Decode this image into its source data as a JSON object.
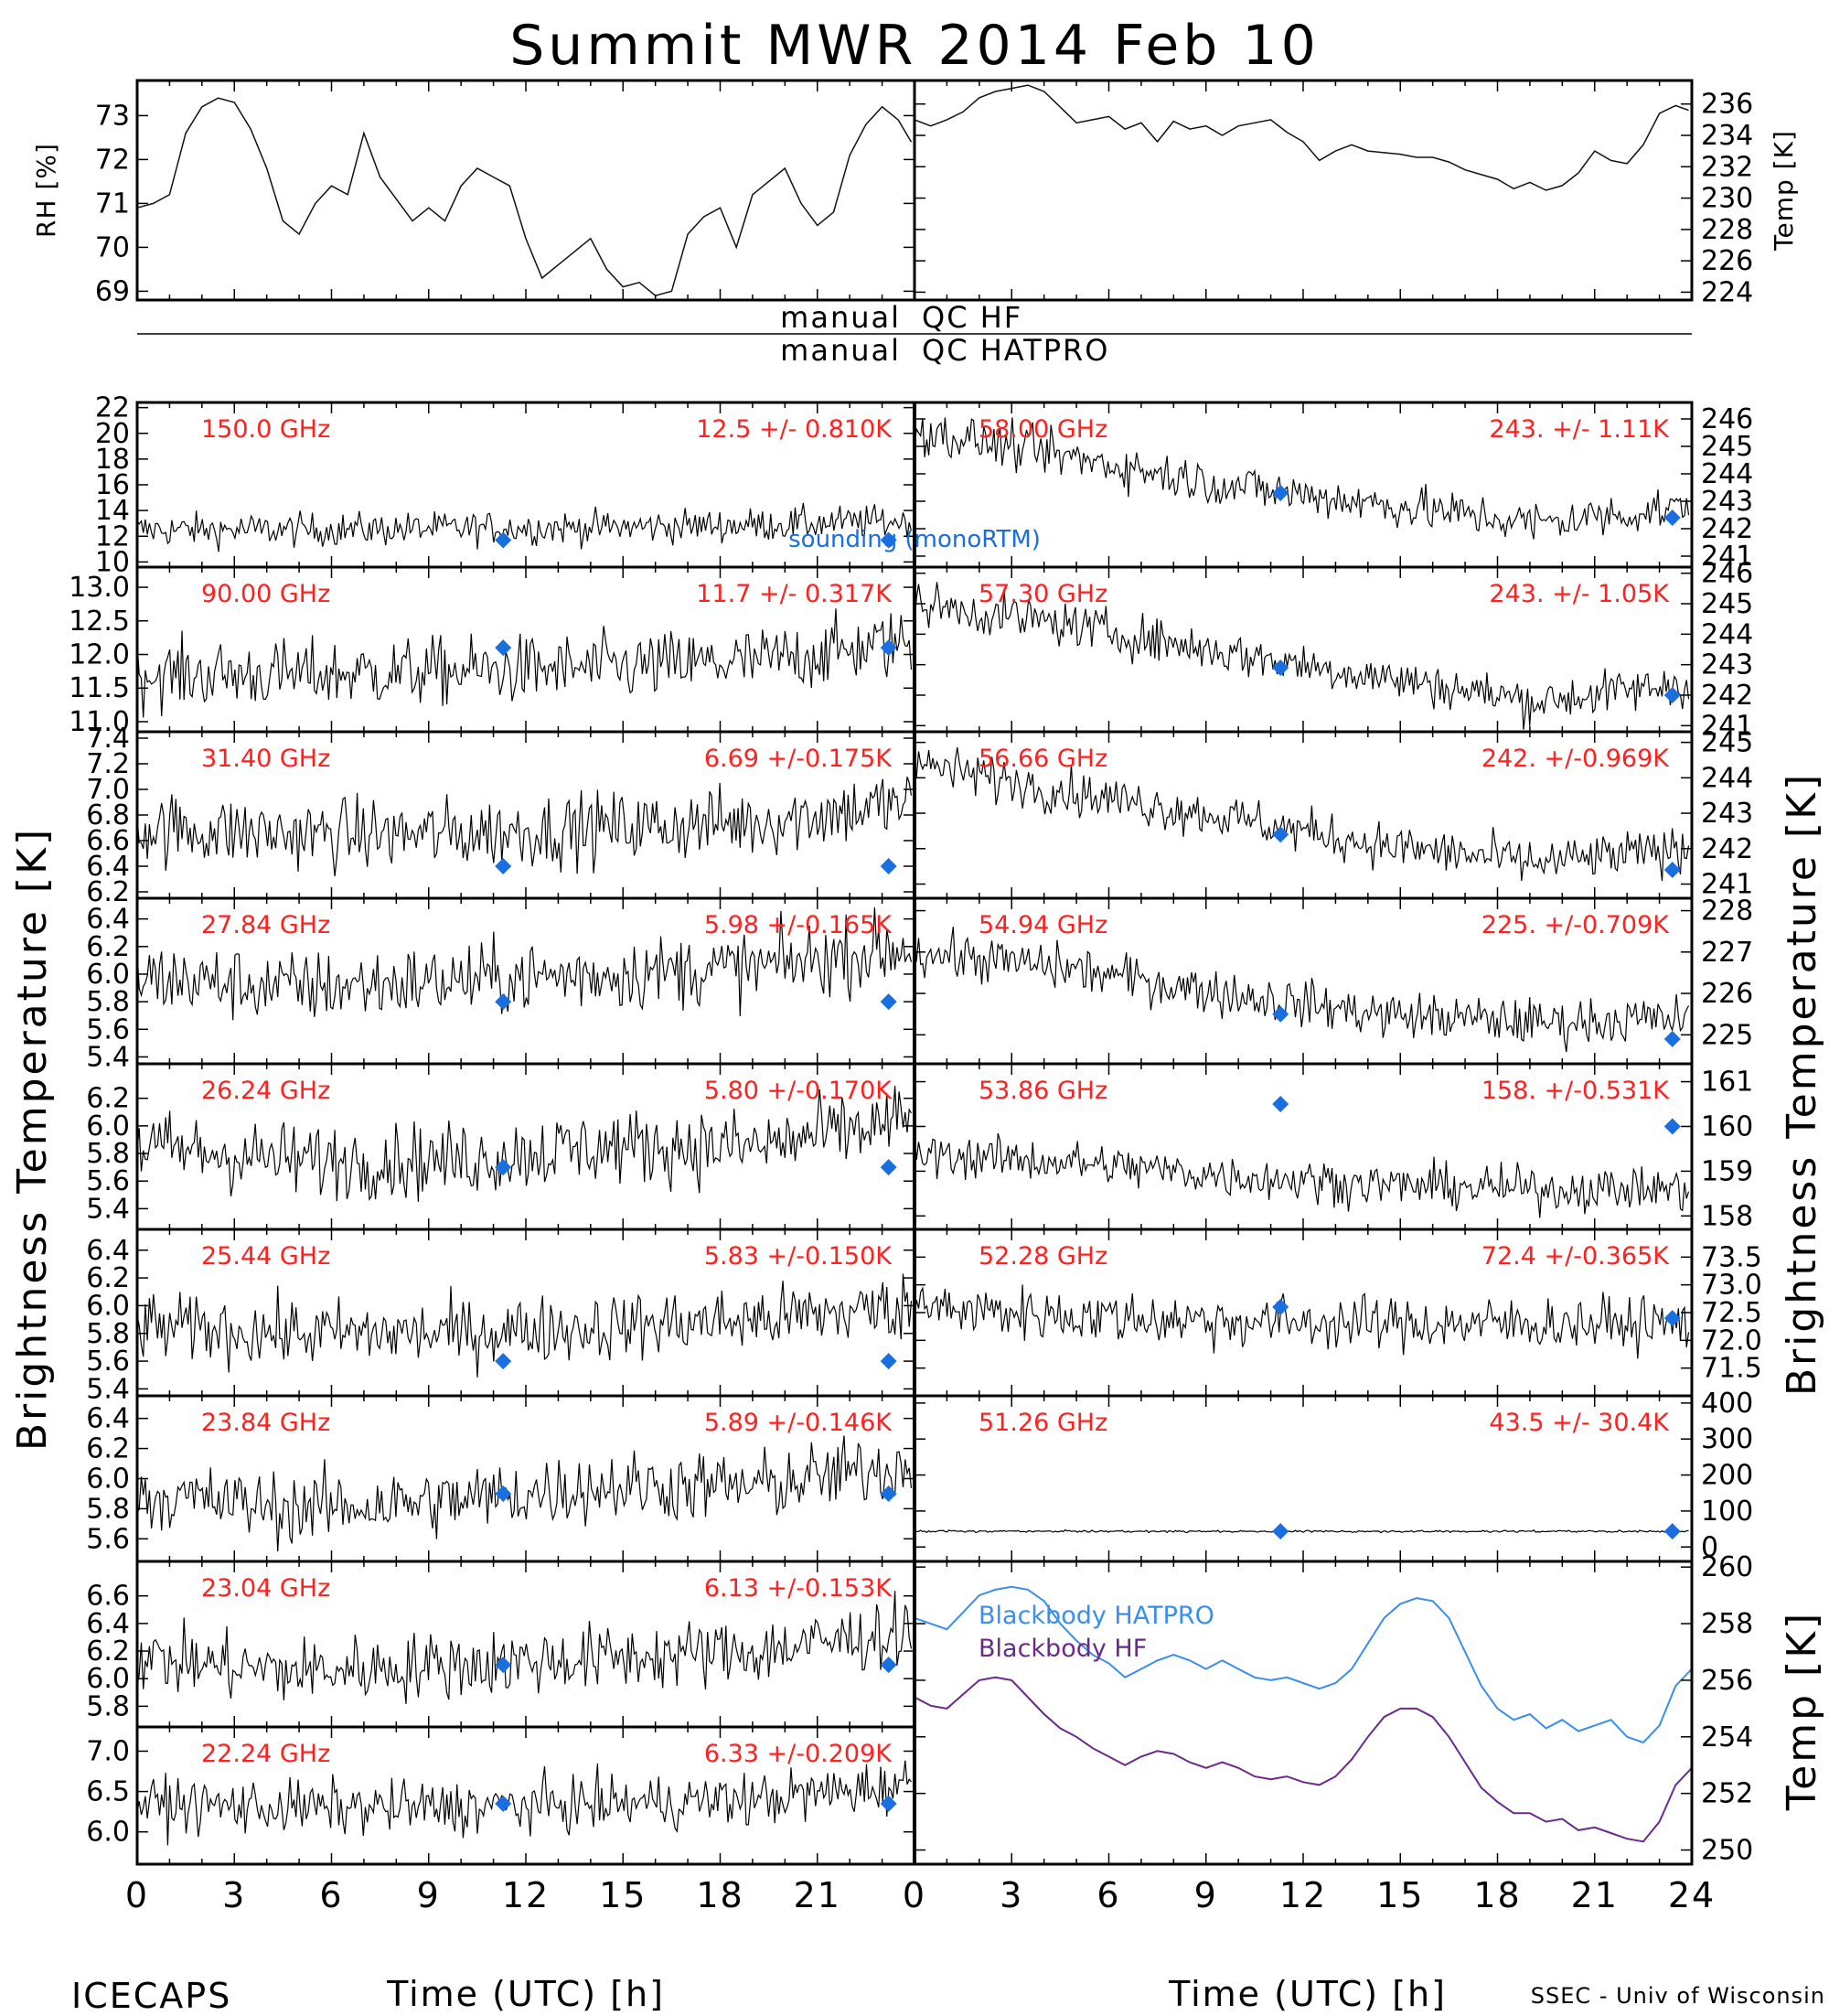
{
  "title": "Summit MWR 2014 Feb 10",
  "footer_left": "ICECAPS",
  "footer_right": "SSEC - Univ of Wisconsin",
  "colors": {
    "tb": "#000000",
    "mark": "#1a6fe0",
    "label": "#ff2020",
    "hatpro": "#3a8ef0",
    "hf": "#6a2a8a"
  },
  "qc_labels": [
    {
      "left": "manual",
      "right": "QC HF"
    },
    {
      "left": "manual",
      "right": "QC HATPRO"
    }
  ],
  "legend_sounding": "sounding (monoRTM)",
  "axes": {
    "x_label": "Time (UTC) [h]",
    "x_ticks": [
      "0",
      "3",
      "6",
      "9",
      "12",
      "15",
      "18",
      "21",
      "24"
    ],
    "left_big_label": "Brightness Temperature [K]",
    "right_big_label": "Brightness Temperature [K]"
  },
  "chart_data": [
    {
      "type": "line",
      "panel": "rh",
      "ylabel": "RH [%]",
      "ylim": [
        68.8,
        73.8
      ],
      "yticks": [
        "69",
        "70",
        "71",
        "72",
        "73"
      ],
      "x": [
        0,
        0.5,
        1,
        1.5,
        2,
        2.5,
        3,
        3.5,
        4,
        4.5,
        5,
        5.5,
        6,
        6.5,
        7,
        7.5,
        8,
        8.5,
        9,
        9.5,
        10,
        10.5,
        11,
        11.5,
        12,
        12.5,
        13,
        13.5,
        14,
        14.5,
        15,
        15.5,
        16,
        16.5,
        17,
        17.5,
        18,
        18.5,
        19,
        19.5,
        20,
        20.5,
        21,
        21.5,
        22,
        22.5,
        23,
        23.5,
        23.9
      ],
      "values": [
        70.9,
        71.0,
        71.2,
        72.6,
        73.2,
        73.4,
        73.3,
        72.7,
        71.8,
        70.6,
        70.3,
        71.0,
        71.4,
        71.2,
        72.6,
        71.6,
        71.1,
        70.6,
        70.9,
        70.6,
        71.4,
        71.8,
        71.6,
        71.4,
        70.2,
        69.3,
        69.6,
        69.9,
        70.2,
        69.5,
        69.1,
        69.2,
        68.9,
        69.0,
        70.3,
        70.7,
        70.9,
        70.0,
        71.2,
        71.5,
        71.8,
        71.0,
        70.5,
        70.8,
        72.1,
        72.8,
        73.2,
        72.9,
        72.4
      ]
    },
    {
      "type": "line",
      "panel": "temp",
      "ylabel": "Temp [K]",
      "ylim": [
        223.5,
        237.5
      ],
      "yticks": [
        "224",
        "226",
        "228",
        "230",
        "232",
        "234",
        "236"
      ],
      "x": [
        0,
        0.5,
        1,
        1.5,
        2,
        2.5,
        3,
        3.5,
        4,
        4.5,
        5,
        5.5,
        6,
        6.5,
        7,
        7.5,
        8,
        8.5,
        9,
        9.5,
        10,
        10.5,
        11,
        11.5,
        12,
        12.5,
        13,
        13.5,
        14,
        14.5,
        15,
        15.5,
        16,
        16.5,
        17,
        17.5,
        18,
        18.5,
        19,
        19.5,
        20,
        20.5,
        21,
        21.5,
        22,
        22.5,
        23,
        23.5,
        23.9
      ],
      "values": [
        235.0,
        234.6,
        235.0,
        235.5,
        236.4,
        236.8,
        237.0,
        237.2,
        236.8,
        235.8,
        234.8,
        235.0,
        235.2,
        234.4,
        234.8,
        233.6,
        234.9,
        234.4,
        234.6,
        234.0,
        234.6,
        234.8,
        235.0,
        234.2,
        233.6,
        232.4,
        233.0,
        233.4,
        233.0,
        232.9,
        232.8,
        232.6,
        232.6,
        232.3,
        231.8,
        231.5,
        231.2,
        230.6,
        231.0,
        230.5,
        230.8,
        231.6,
        233.0,
        232.4,
        232.2,
        233.4,
        235.4,
        235.9,
        235.6
      ]
    },
    {
      "type": "scatter",
      "panel": "tb_left_1",
      "channel": "150.0 GHz",
      "stats": "12.5 +/- 0.810K",
      "ylim": [
        9.6,
        22.4
      ],
      "yticks": [
        "10",
        "12",
        "14",
        "16",
        "18",
        "20",
        "22"
      ],
      "mean": 12.5,
      "noise": 0.81,
      "trend": [
        12.5,
        12.5,
        12.6,
        12.7,
        12.9,
        13.2
      ],
      "sounding": [
        {
          "x": 11.3,
          "y": 11.7
        },
        {
          "x": 23.2,
          "y": 11.7
        }
      ]
    },
    {
      "type": "scatter",
      "panel": "tb_left_2",
      "channel": "90.00 GHz",
      "stats": "11.7 +/- 0.317K",
      "ylim": [
        10.85,
        13.3
      ],
      "yticks": [
        "11.0",
        "11.5",
        "12.0",
        "12.5",
        "13.0"
      ],
      "mean": 11.7,
      "noise": 0.317,
      "trend": [
        11.7,
        11.7,
        11.75,
        11.8,
        11.9,
        12.2
      ],
      "sounding": [
        {
          "x": 11.3,
          "y": 12.1
        },
        {
          "x": 23.2,
          "y": 12.1
        }
      ]
    },
    {
      "type": "scatter",
      "panel": "tb_left_3",
      "channel": "31.40 GHz",
      "stats": "6.69 +/-0.175K",
      "ylim": [
        6.15,
        7.45
      ],
      "yticks": [
        "6.2",
        "6.4",
        "6.6",
        "6.8",
        "7.0",
        "7.2",
        "7.4"
      ],
      "mean": 6.69,
      "noise": 0.175,
      "trend": [
        6.7,
        6.65,
        6.65,
        6.7,
        6.75,
        6.9
      ],
      "sounding": [
        {
          "x": 11.3,
          "y": 6.4
        },
        {
          "x": 23.2,
          "y": 6.4
        }
      ]
    },
    {
      "type": "scatter",
      "panel": "tb_left_4",
      "channel": "27.84 GHz",
      "stats": "5.98 +/-0.165K",
      "ylim": [
        5.35,
        6.55
      ],
      "yticks": [
        "5.4",
        "5.6",
        "5.8",
        "6.0",
        "6.2",
        "6.4"
      ],
      "mean": 5.98,
      "noise": 0.165,
      "trend": [
        5.98,
        5.9,
        5.95,
        6.0,
        6.05,
        6.2
      ],
      "sounding": [
        {
          "x": 11.3,
          "y": 5.8
        },
        {
          "x": 23.2,
          "y": 5.8
        }
      ]
    },
    {
      "type": "scatter",
      "panel": "tb_left_5",
      "channel": "26.24 GHz",
      "stats": "5.80 +/-0.170K",
      "ylim": [
        5.25,
        6.45
      ],
      "yticks": [
        "5.4",
        "5.6",
        "5.8",
        "6.0",
        "6.2"
      ],
      "mean": 5.8,
      "noise": 0.17,
      "trend": [
        5.85,
        5.75,
        5.75,
        5.85,
        5.85,
        6.05
      ],
      "sounding": [
        {
          "x": 11.3,
          "y": 5.7
        },
        {
          "x": 23.2,
          "y": 5.7
        }
      ]
    },
    {
      "type": "scatter",
      "panel": "tb_left_6",
      "channel": "25.44 GHz",
      "stats": "5.83 +/-0.150K",
      "ylim": [
        5.35,
        6.55
      ],
      "yticks": [
        "5.4",
        "5.6",
        "5.8",
        "6.0",
        "6.2",
        "6.4"
      ],
      "mean": 5.83,
      "noise": 0.15,
      "trend": [
        5.85,
        5.8,
        5.8,
        5.85,
        5.9,
        6.0
      ],
      "sounding": [
        {
          "x": 11.3,
          "y": 5.6
        },
        {
          "x": 23.2,
          "y": 5.6
        }
      ]
    },
    {
      "type": "scatter",
      "panel": "tb_left_7",
      "channel": "23.84 GHz",
      "stats": "5.89 +/-0.146K",
      "ylim": [
        5.45,
        6.55
      ],
      "yticks": [
        "5.6",
        "5.8",
        "6.0",
        "6.2",
        "6.4"
      ],
      "mean": 5.89,
      "noise": 0.146,
      "trend": [
        5.9,
        5.8,
        5.85,
        5.95,
        5.95,
        6.1
      ],
      "sounding": [
        {
          "x": 11.3,
          "y": 5.9
        },
        {
          "x": 23.2,
          "y": 5.9
        }
      ]
    },
    {
      "type": "scatter",
      "panel": "tb_left_8",
      "channel": "23.04 GHz",
      "stats": "6.13 +/-0.153K",
      "ylim": [
        5.65,
        6.85
      ],
      "yticks": [
        "5.8",
        "6.0",
        "6.2",
        "6.4",
        "6.6"
      ],
      "mean": 6.13,
      "noise": 0.153,
      "trend": [
        6.15,
        6.05,
        6.1,
        6.15,
        6.2,
        6.35
      ],
      "sounding": [
        {
          "x": 11.3,
          "y": 6.1
        },
        {
          "x": 23.2,
          "y": 6.1
        }
      ]
    },
    {
      "type": "scatter",
      "panel": "tb_left_9",
      "channel": "22.24 GHz",
      "stats": "6.33 +/-0.209K",
      "ylim": [
        5.6,
        7.3
      ],
      "yticks": [
        "6.0",
        "6.5",
        "7.0"
      ],
      "mean": 6.33,
      "noise": 0.209,
      "trend": [
        6.35,
        6.3,
        6.3,
        6.35,
        6.4,
        6.6
      ],
      "sounding": [
        {
          "x": 11.3,
          "y": 6.35
        },
        {
          "x": 23.2,
          "y": 6.35
        }
      ]
    },
    {
      "type": "scatter",
      "panel": "tb_right_1",
      "channel": "58.00 GHz",
      "stats": "243. +/- 1.11K",
      "ylim": [
        240.6,
        246.6
      ],
      "yticks": [
        "241",
        "242",
        "243",
        "244",
        "245",
        "246"
      ],
      "mean": 243.0,
      "noise": 0.5,
      "trend": [
        245.6,
        244.6,
        243.6,
        242.9,
        242.2,
        242.8
      ],
      "sounding": [
        {
          "x": 11.3,
          "y": 243.3
        },
        {
          "x": 23.4,
          "y": 242.4
        }
      ]
    },
    {
      "type": "scatter",
      "panel": "tb_right_2",
      "channel": "57.30 GHz",
      "stats": "243. +/- 1.05K",
      "ylim": [
        240.8,
        246.2
      ],
      "yticks": [
        "241",
        "242",
        "243",
        "244",
        "245",
        "246"
      ],
      "mean": 243.0,
      "noise": 0.45,
      "trend": [
        245.0,
        244.3,
        243.4,
        242.6,
        241.8,
        242.4
      ],
      "sounding": [
        {
          "x": 11.3,
          "y": 242.9
        },
        {
          "x": 23.4,
          "y": 242.0
        }
      ]
    },
    {
      "type": "scatter",
      "panel": "tb_right_3",
      "channel": "56.66 GHz",
      "stats": "242. +/-0.969K",
      "ylim": [
        240.6,
        245.3
      ],
      "yticks": [
        "241",
        "242",
        "243",
        "244",
        "245"
      ],
      "mean": 242.0,
      "noise": 0.4,
      "trend": [
        244.4,
        243.6,
        242.9,
        242.1,
        241.6,
        242.0
      ],
      "sounding": [
        {
          "x": 11.3,
          "y": 242.4
        },
        {
          "x": 23.4,
          "y": 241.4
        }
      ]
    },
    {
      "type": "scatter",
      "panel": "tb_right_4",
      "channel": "54.94 GHz",
      "stats": "225. +/-0.709K",
      "ylim": [
        224.3,
        228.3
      ],
      "yticks": [
        "225",
        "226",
        "227",
        "228"
      ],
      "mean": 225.0,
      "noise": 0.35,
      "trend": [
        227.0,
        226.6,
        226.0,
        225.5,
        225.3,
        225.4
      ],
      "sounding": [
        {
          "x": 11.3,
          "y": 225.5
        },
        {
          "x": 23.4,
          "y": 224.9
        }
      ]
    },
    {
      "type": "scatter",
      "panel": "tb_right_5",
      "channel": "53.86 GHz",
      "stats": "158. +/-0.531K",
      "ylim": [
        157.7,
        161.4
      ],
      "yticks": [
        "158",
        "159",
        "160",
        "161"
      ],
      "mean": 158.0,
      "noise": 0.3,
      "trend": [
        159.4,
        159.2,
        158.9,
        158.7,
        158.6,
        158.6
      ],
      "sounding": [
        {
          "x": 11.3,
          "y": 160.5
        },
        {
          "x": 23.4,
          "y": 160.0
        }
      ]
    },
    {
      "type": "scatter",
      "panel": "tb_right_6",
      "channel": "52.28 GHz",
      "stats": "72.4 +/-0.365K",
      "ylim": [
        71.0,
        74.0
      ],
      "yticks": [
        "71.5",
        "72.0",
        "72.5",
        "73.0",
        "73.5"
      ],
      "mean": 72.4,
      "noise": 0.3,
      "trend": [
        72.6,
        72.45,
        72.35,
        72.3,
        72.3,
        72.3
      ],
      "sounding": [
        {
          "x": 11.3,
          "y": 72.6
        },
        {
          "x": 23.4,
          "y": 72.4
        }
      ]
    },
    {
      "type": "scatter",
      "panel": "tb_right_7",
      "channel": "51.26 GHz",
      "stats": "43.5 +/- 30.4K",
      "ylim": [
        -40,
        420
      ],
      "yticks": [
        "0",
        "100",
        "200",
        "300",
        "400"
      ],
      "mean": 43.5,
      "noise": 1.5,
      "trend": [
        43.5,
        43.5,
        43.5,
        43.5,
        43.5,
        43.5
      ],
      "sounding": [
        {
          "x": 11.3,
          "y": 43.5
        },
        {
          "x": 23.4,
          "y": 43.5
        }
      ]
    },
    {
      "type": "line",
      "panel": "blackbody",
      "ylabel": "Temp [K]",
      "ylim": [
        249.5,
        260.2
      ],
      "yticks": [
        "250",
        "252",
        "254",
        "256",
        "258",
        "260"
      ],
      "x": [
        0,
        0.5,
        1,
        1.5,
        2,
        2.5,
        3,
        3.5,
        4,
        4.5,
        5,
        5.5,
        6,
        6.5,
        7,
        7.5,
        8,
        8.5,
        9,
        9.5,
        10,
        10.5,
        11,
        11.5,
        12,
        12.5,
        13,
        13.5,
        14,
        14.5,
        15,
        15.5,
        16,
        16.5,
        17,
        17.5,
        18,
        18.5,
        19,
        19.5,
        20,
        20.5,
        21,
        21.5,
        22,
        22.5,
        23,
        23.5,
        24
      ],
      "series": [
        {
          "name": "Blackbody HATPRO",
          "values": [
            258.2,
            258.0,
            257.8,
            258.4,
            259.0,
            259.2,
            259.3,
            259.2,
            258.8,
            258.0,
            257.4,
            256.9,
            256.6,
            256.1,
            256.4,
            256.7,
            256.9,
            256.7,
            256.4,
            256.7,
            256.4,
            256.1,
            256.0,
            256.1,
            255.9,
            255.7,
            255.9,
            256.4,
            257.3,
            258.2,
            258.7,
            258.9,
            258.8,
            258.2,
            257.0,
            255.8,
            255.0,
            254.6,
            254.8,
            254.3,
            254.6,
            254.2,
            254.4,
            254.6,
            254.0,
            253.8,
            254.4,
            255.8,
            256.4
          ]
        },
        {
          "name": "Blackbody HF",
          "values": [
            255.4,
            255.1,
            255.0,
            255.5,
            256.0,
            256.1,
            256.0,
            255.4,
            254.8,
            254.3,
            254.0,
            253.6,
            253.3,
            253.0,
            253.3,
            253.5,
            253.4,
            253.1,
            252.9,
            253.1,
            252.9,
            252.6,
            252.5,
            252.6,
            252.4,
            252.3,
            252.6,
            253.2,
            254.0,
            254.7,
            255.0,
            255.0,
            254.7,
            254.0,
            253.1,
            252.2,
            251.7,
            251.3,
            251.3,
            251.0,
            251.1,
            250.7,
            250.8,
            250.6,
            250.4,
            250.3,
            251.0,
            252.3,
            252.9
          ]
        }
      ]
    }
  ]
}
